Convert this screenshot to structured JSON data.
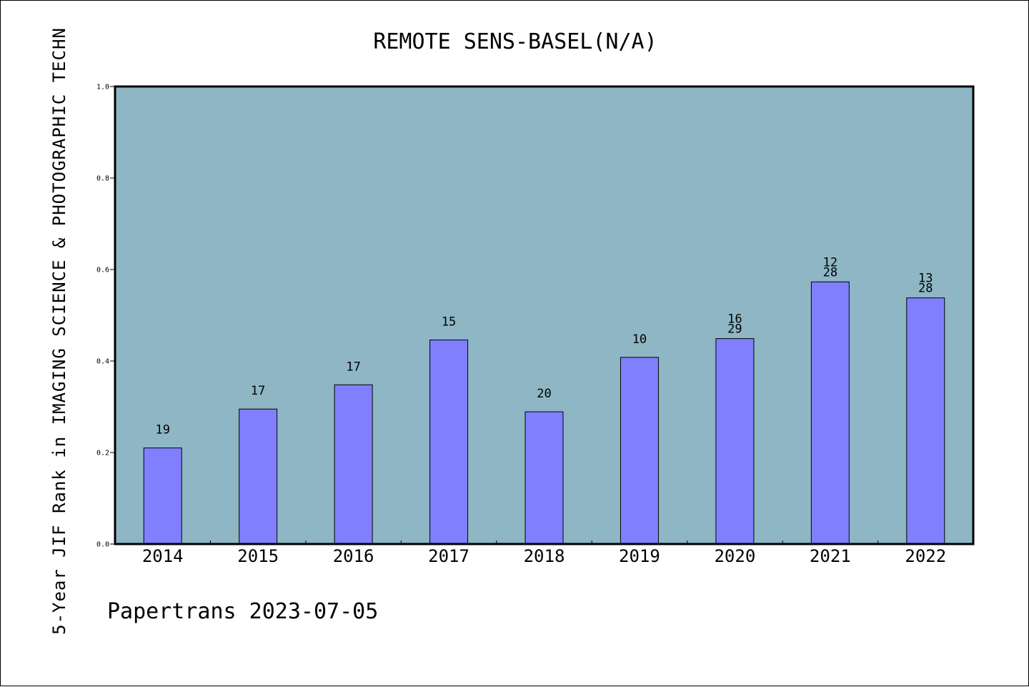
{
  "chart_data": {
    "type": "bar",
    "title": "REMOTE SENS-BASEL(N/A)",
    "xlabel": "",
    "ylabel": "5-Year JIF Rank in IMAGING SCIENCE & PHOTOGRAPHIC TECHN",
    "footer": "Papertrans 2023-07-05",
    "ylim": [
      0.0,
      1.0
    ],
    "yticks": [
      "0.0",
      "0.2",
      "0.4",
      "0.6",
      "0.8",
      "1.0"
    ],
    "ytick_values": [
      0.0,
      0.2,
      0.4,
      0.6,
      0.8,
      1.0
    ],
    "categories": [
      "2014",
      "2015",
      "2016",
      "2017",
      "2018",
      "2019",
      "2020",
      "2021",
      "2022"
    ],
    "values": [
      0.21,
      0.295,
      0.348,
      0.446,
      0.289,
      0.408,
      0.449,
      0.573,
      0.538
    ],
    "bar_labels": [
      [
        "19"
      ],
      [
        "17"
      ],
      [
        "17"
      ],
      [
        "15"
      ],
      [
        "20"
      ],
      [
        "10"
      ],
      [
        "16",
        "29"
      ],
      [
        "12",
        "28"
      ],
      [
        "13",
        "28"
      ]
    ],
    "grid": false,
    "colors": {
      "plot_background": "#8fb6c4",
      "bar_fill": "#8080ff",
      "bar_stroke": "#000000"
    }
  }
}
